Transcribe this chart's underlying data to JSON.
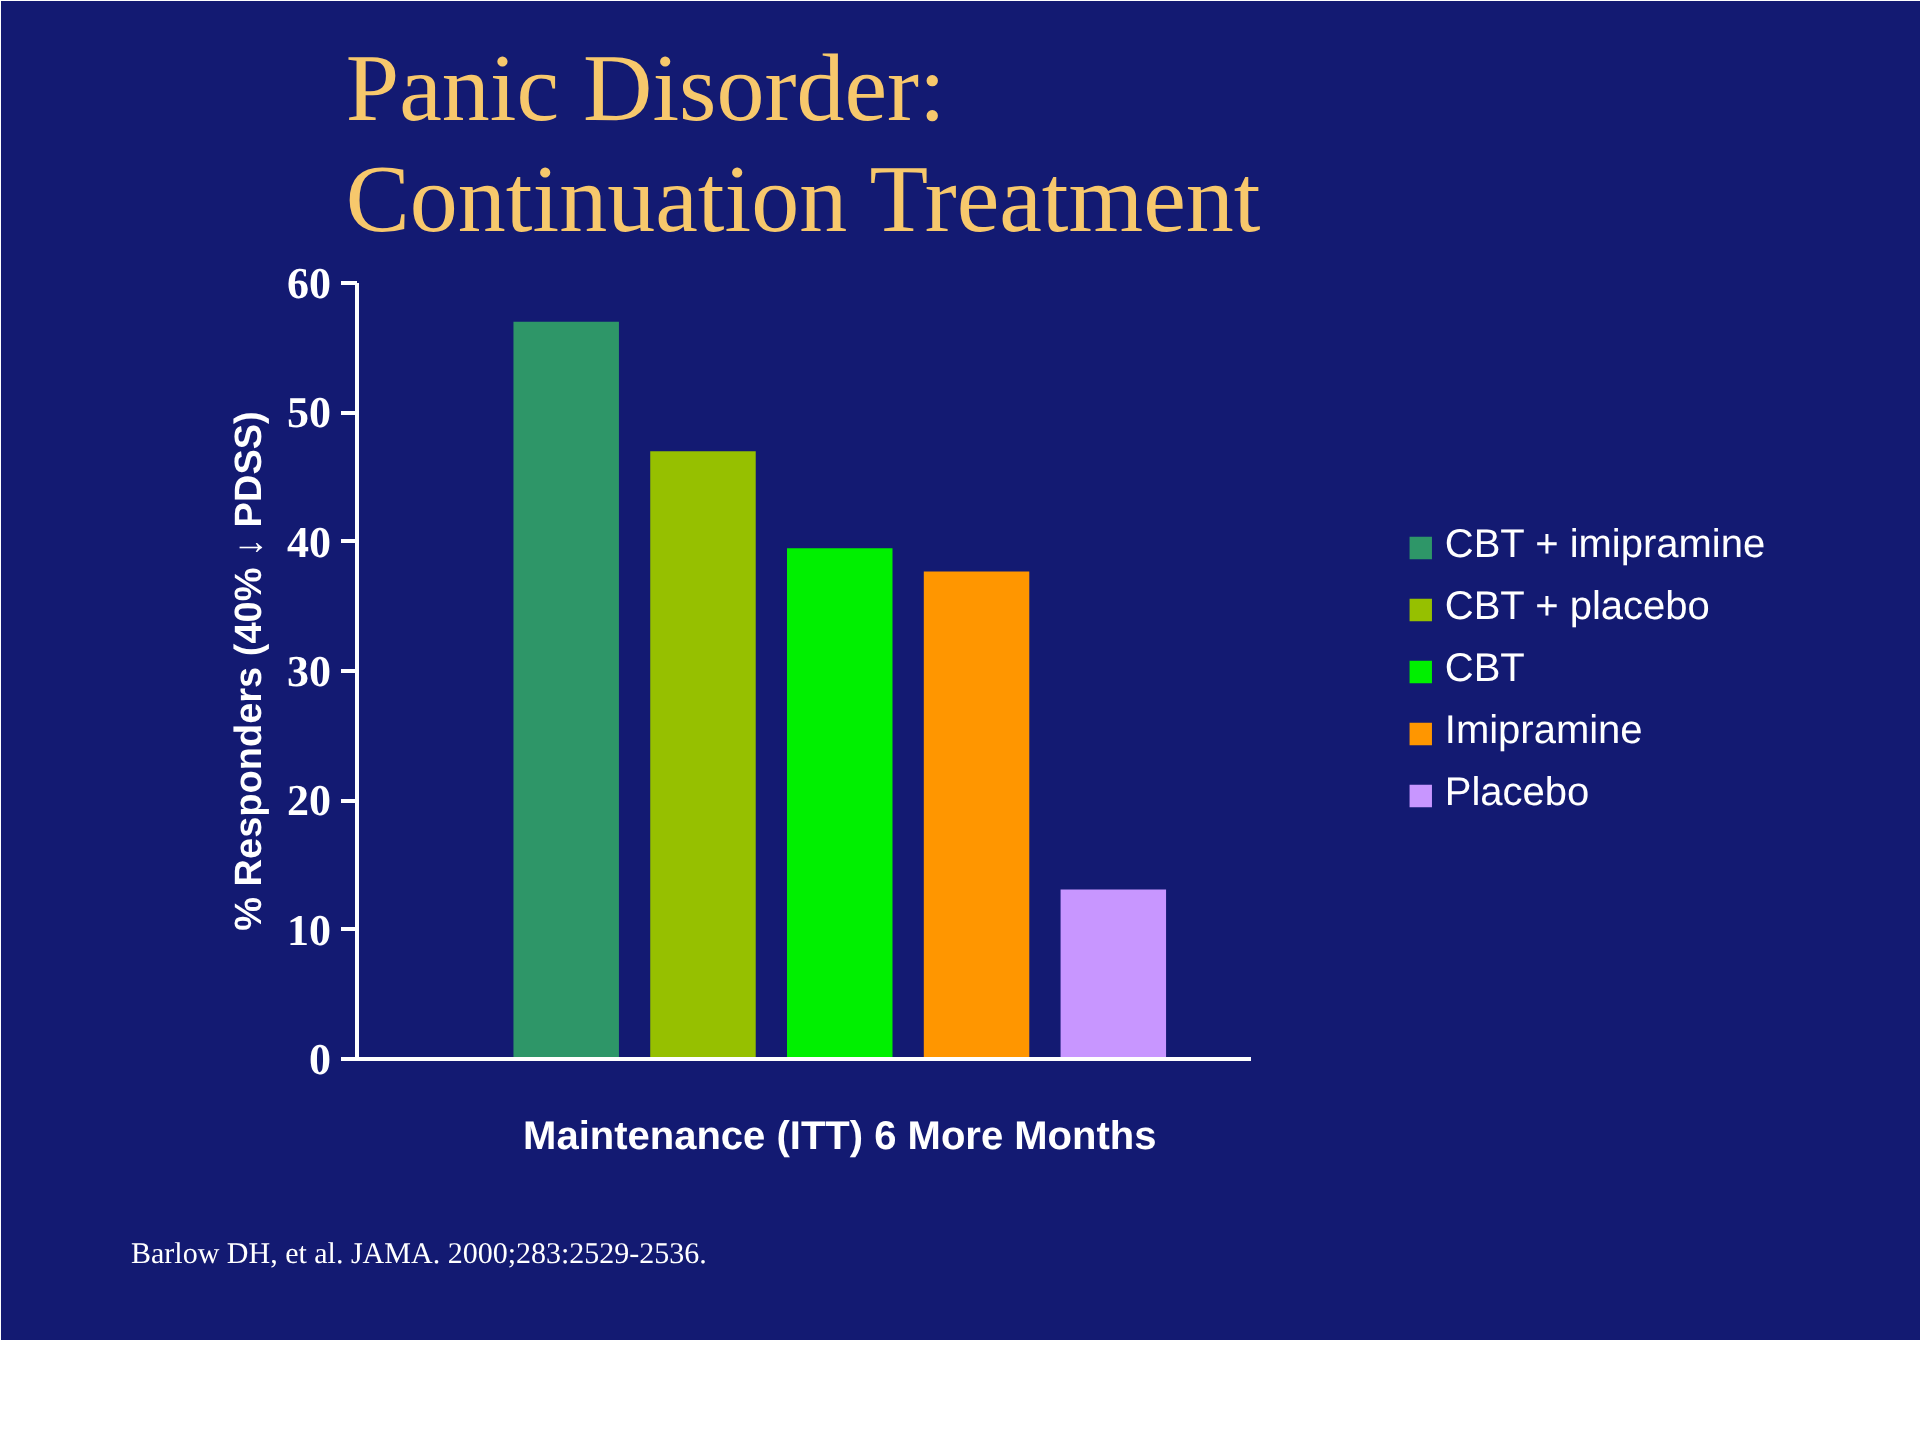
{
  "chart_data": {
    "type": "bar",
    "title": "Panic Disorder:\nContinuation Treatment",
    "ylabel": "% Responders (40% ↓ PDSS)",
    "categories": [
      "Maintenance (ITT) 6 More Months"
    ],
    "series": [
      {
        "name": "CBT + imipramine",
        "color": "#2e9668",
        "values": [
          57
        ]
      },
      {
        "name": "CBT + placebo",
        "color": "#96c000",
        "values": [
          47
        ]
      },
      {
        "name": "CBT",
        "color": "#00f000",
        "values": [
          39.5
        ]
      },
      {
        "name": "Imipramine",
        "color": "#ff9600",
        "values": [
          37.7
        ]
      },
      {
        "name": "Placebo",
        "color": "#c896ff",
        "values": [
          13.1
        ]
      }
    ],
    "ylim": [
      0,
      60
    ],
    "yticks": [
      0,
      10,
      20,
      30,
      40,
      50,
      60
    ],
    "grid": false,
    "legend": "right",
    "annotations": [
      "Barlow DH, et al. JAMA. 2000;283:2529-2536."
    ]
  }
}
